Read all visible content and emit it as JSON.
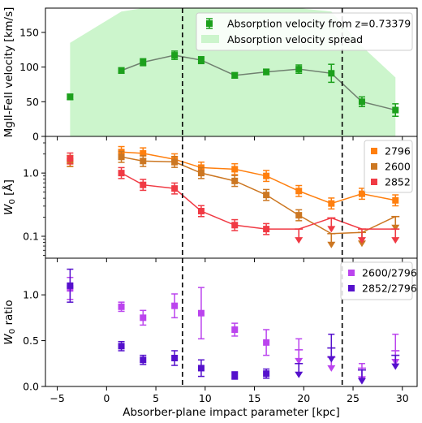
{
  "chart_data": [
    {
      "type": "scatter",
      "panel": "velocity",
      "ylabel": "MgII-FeII velocity [km/s]",
      "ylim": [
        0,
        185
      ],
      "yticks": [
        0,
        50,
        100,
        150
      ],
      "xlim": [
        -6.2,
        31.5
      ],
      "xticks": [
        -5,
        0,
        5,
        10,
        15,
        20,
        25,
        30
      ],
      "legend_position": "top-right",
      "colors": {
        "points": "#1ca01c",
        "line": "#708070",
        "spread": "#ccf5cc"
      },
      "series": [
        {
          "name": "Absorption velocity from z=0.73379",
          "x": [
            -3.7,
            1.5,
            3.7,
            6.9,
            9.6,
            13.0,
            16.2,
            19.5,
            22.8,
            25.9,
            29.3
          ],
          "y": [
            57,
            95,
            107,
            117,
            110,
            88,
            93,
            97,
            91,
            50,
            38
          ],
          "yerr": [
            4,
            4,
            5,
            6,
            5,
            4,
            4,
            6,
            13,
            7,
            9
          ],
          "connected_from_index": 1
        }
      ],
      "spread": {
        "name": "Absorption velocity spread",
        "x": [
          -3.7,
          1.5,
          3.7,
          6.9,
          9.6,
          13.0,
          16.2,
          19.5,
          22.8,
          25.9,
          29.3
        ],
        "low": [
          0,
          0,
          0,
          0,
          0,
          0,
          0,
          0,
          0,
          0,
          0
        ],
        "high": [
          135,
          180,
          185,
          185,
          185,
          185,
          185,
          185,
          180,
          130,
          85
        ]
      },
      "vlines": [
        7.7,
        23.9
      ]
    },
    {
      "type": "line",
      "panel": "equivalent-width",
      "ylabel": "W_0 [Å]",
      "yscale": "log",
      "ylim": [
        0.045,
        3.8
      ],
      "yticks": [
        0.1,
        1.0
      ],
      "ytick_labels": [
        "0.1",
        "1.0"
      ],
      "xlim": [
        -6.2,
        31.5
      ],
      "legend_position": "top-right",
      "series": [
        {
          "name": "2796",
          "color": "#ff7f0e",
          "x": [
            -3.7,
            1.5,
            3.7,
            6.9,
            9.6,
            13.0,
            16.2,
            19.5,
            22.8,
            25.9,
            29.3
          ],
          "y": [
            1.55,
            2.15,
            2.05,
            1.65,
            1.22,
            1.15,
            0.9,
            0.52,
            0.33,
            0.47,
            0.37
          ],
          "upper_limit": [
            false,
            false,
            false,
            false,
            false,
            false,
            false,
            false,
            false,
            false,
            false
          ],
          "connected_from_index": 1
        },
        {
          "name": "2600",
          "color": "#cc7722",
          "x": [
            -3.7,
            1.5,
            3.7,
            6.9,
            9.6,
            13.0,
            16.2,
            19.5,
            22.8,
            25.9,
            29.3
          ],
          "y": [
            1.55,
            1.8,
            1.55,
            1.5,
            1.0,
            0.75,
            0.45,
            0.215,
            0.11,
            0.115,
            0.205
          ],
          "upper_limit": [
            false,
            false,
            false,
            false,
            false,
            false,
            false,
            false,
            true,
            true,
            true
          ],
          "connected_from_index": 1
        },
        {
          "name": "2852",
          "color": "#f03a44",
          "x": [
            -3.7,
            1.5,
            3.7,
            6.9,
            9.6,
            13.0,
            16.2,
            19.5,
            22.8,
            25.9,
            29.3
          ],
          "y": [
            1.7,
            1.0,
            0.65,
            0.57,
            0.25,
            0.15,
            0.13,
            0.13,
            0.195,
            0.13,
            0.13
          ],
          "upper_limit": [
            false,
            false,
            false,
            false,
            false,
            false,
            false,
            true,
            true,
            true,
            true
          ],
          "connected_from_index": 1
        }
      ],
      "vlines": [
        7.7,
        23.9
      ]
    },
    {
      "type": "scatter",
      "panel": "ratio",
      "ylabel": "W_0 ratio",
      "xlabel": "Absorber-plane impact parameter [kpc]",
      "ylim": [
        0,
        1.4
      ],
      "yticks": [
        0.0,
        0.5,
        1.0
      ],
      "ytick_labels": [
        "0.0",
        "0.5",
        "1.0"
      ],
      "xlim": [
        -6.2,
        31.5
      ],
      "xticks": [
        -5,
        0,
        5,
        10,
        15,
        20,
        25,
        30
      ],
      "legend_position": "top-right",
      "series": [
        {
          "name": "2600/2796",
          "color": "#bb44ee",
          "x": [
            -3.7,
            1.5,
            3.7,
            6.9,
            9.6,
            13.0,
            16.2,
            19.5,
            22.8,
            25.9,
            29.3
          ],
          "y": [
            1.07,
            0.87,
            0.75,
            0.88,
            0.8,
            0.62,
            0.48,
            0.4,
            0.32,
            0.2,
            0.39
          ],
          "yerr": [
            0.12,
            0.05,
            0.08,
            0.13,
            0.28,
            0.07,
            0.14,
            0.12,
            0.0,
            0.05,
            0.18
          ],
          "upper_limit": [
            false,
            false,
            false,
            false,
            false,
            false,
            false,
            true,
            true,
            true,
            true
          ]
        },
        {
          "name": "2852/2796",
          "color": "#5511cc",
          "x": [
            -3.7,
            1.5,
            3.7,
            6.9,
            9.6,
            13.0,
            16.2,
            19.5,
            22.8,
            25.9,
            29.3
          ],
          "y": [
            1.1,
            0.44,
            0.29,
            0.31,
            0.2,
            0.12,
            0.14,
            0.25,
            0.42,
            0.18,
            0.34
          ],
          "yerr": [
            0.18,
            0.05,
            0.05,
            0.08,
            0.09,
            0.04,
            0.05,
            0.0,
            0.15,
            0.0,
            0.0
          ],
          "upper_limit": [
            false,
            false,
            false,
            false,
            false,
            false,
            false,
            true,
            true,
            true,
            true
          ]
        }
      ],
      "vlines": [
        7.7,
        23.9
      ]
    }
  ]
}
